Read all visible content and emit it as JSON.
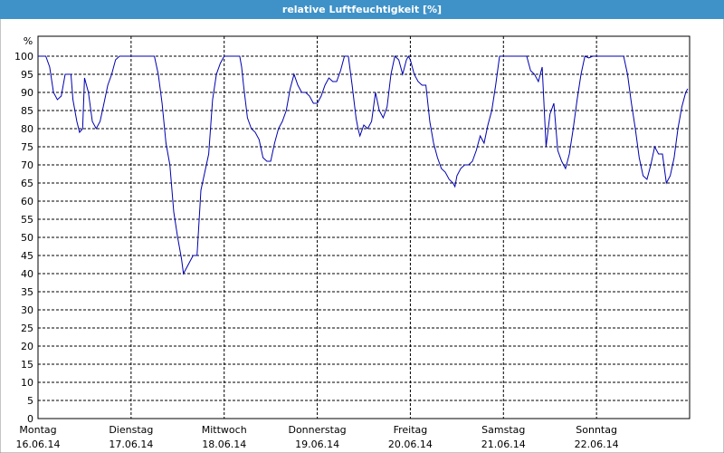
{
  "chart_data": {
    "type": "line",
    "title": "relative Luftfeuchtigkeit [%]",
    "ylabel": "%",
    "xlim": [
      0,
      168
    ],
    "ylim": [
      0,
      100
    ],
    "yticks": [
      0,
      5,
      10,
      15,
      20,
      25,
      30,
      35,
      40,
      45,
      50,
      55,
      60,
      65,
      70,
      75,
      80,
      85,
      90,
      95,
      100
    ],
    "xticks": [
      {
        "value": 0,
        "label": "Montag"
      },
      {
        "value": 24,
        "label": "Dienstag"
      },
      {
        "value": 48,
        "label": "Mittwoch"
      },
      {
        "value": 72,
        "label": "Donnerstag"
      },
      {
        "value": 96,
        "label": "Freitag"
      },
      {
        "value": 120,
        "label": "Samstag"
      },
      {
        "value": 144,
        "label": "Sonntag"
      }
    ],
    "xtick_dates": [
      "16.06.14",
      "17.06.14",
      "18.06.14",
      "19.06.14",
      "20.06.14",
      "21.06.14",
      "22.06.14"
    ],
    "grid": true,
    "series": [
      {
        "color": "#0000b0",
        "x": [
          0,
          2,
          3,
          4,
          5,
          6,
          7,
          8,
          8.5,
          9,
          10,
          10.7,
          11.5,
          12,
          13,
          14,
          15,
          16,
          17,
          18,
          19,
          20,
          21,
          24,
          30,
          31,
          32,
          33,
          34,
          35,
          36,
          37,
          37.5,
          38,
          39,
          40,
          41,
          42,
          43,
          44,
          45,
          46,
          47,
          48,
          51,
          52,
          52.5,
          53,
          54,
          55,
          56,
          57,
          58,
          59,
          60,
          61,
          62,
          63,
          64,
          65,
          66,
          67,
          68,
          69,
          70,
          71,
          72,
          73,
          74,
          75,
          76,
          77,
          78,
          79,
          80,
          81,
          82,
          82.5,
          83,
          84,
          85,
          86,
          87,
          88,
          89,
          90,
          91,
          92,
          93,
          94,
          95,
          95.5,
          96,
          97,
          98,
          99,
          100,
          101,
          102,
          103,
          104,
          105,
          106,
          107,
          107.5,
          108,
          109,
          110,
          111,
          112,
          113,
          114,
          115,
          116,
          117,
          118,
          119,
          120,
          126,
          127,
          128,
          129,
          130,
          131,
          132,
          133,
          134,
          135,
          136,
          137,
          138,
          139,
          140,
          141,
          142,
          143,
          148,
          151,
          152,
          153,
          154,
          155,
          156,
          157,
          158,
          159,
          160,
          161,
          162,
          163,
          164,
          165,
          166,
          167,
          167.5
        ],
        "values": [
          100,
          100,
          97,
          90,
          88,
          89,
          95,
          95,
          95,
          88,
          82,
          79,
          80,
          94,
          90,
          82,
          80,
          82,
          87,
          92,
          95,
          99,
          100,
          100,
          100,
          95,
          87,
          76,
          70,
          57,
          50,
          44,
          40,
          41,
          43,
          45,
          45,
          63,
          68,
          73,
          88,
          95,
          98,
          100,
          100,
          100,
          97,
          92,
          83,
          80,
          79,
          77,
          72,
          71,
          71,
          76,
          80,
          82,
          85,
          91,
          95,
          92,
          90,
          90,
          89,
          87,
          87,
          89,
          92,
          94,
          93,
          93,
          96,
          100,
          100,
          92,
          83,
          80,
          78,
          81,
          80,
          82,
          90,
          85,
          83,
          86,
          95,
          100,
          99,
          95,
          99,
          100,
          99,
          95,
          93,
          92,
          92,
          82,
          76,
          72,
          69,
          68,
          66,
          65,
          64,
          67,
          69,
          70,
          70,
          71,
          74,
          78,
          76,
          81,
          85,
          92,
          100,
          100,
          100,
          96,
          95,
          93,
          97,
          75,
          84,
          87,
          74,
          71,
          69,
          73,
          80,
          88,
          95,
          100,
          99.5,
          100,
          100,
          100,
          95,
          87,
          80,
          72,
          67,
          66,
          70,
          75,
          73,
          73,
          65,
          67,
          72,
          80,
          86,
          90,
          91
        ]
      }
    ]
  }
}
